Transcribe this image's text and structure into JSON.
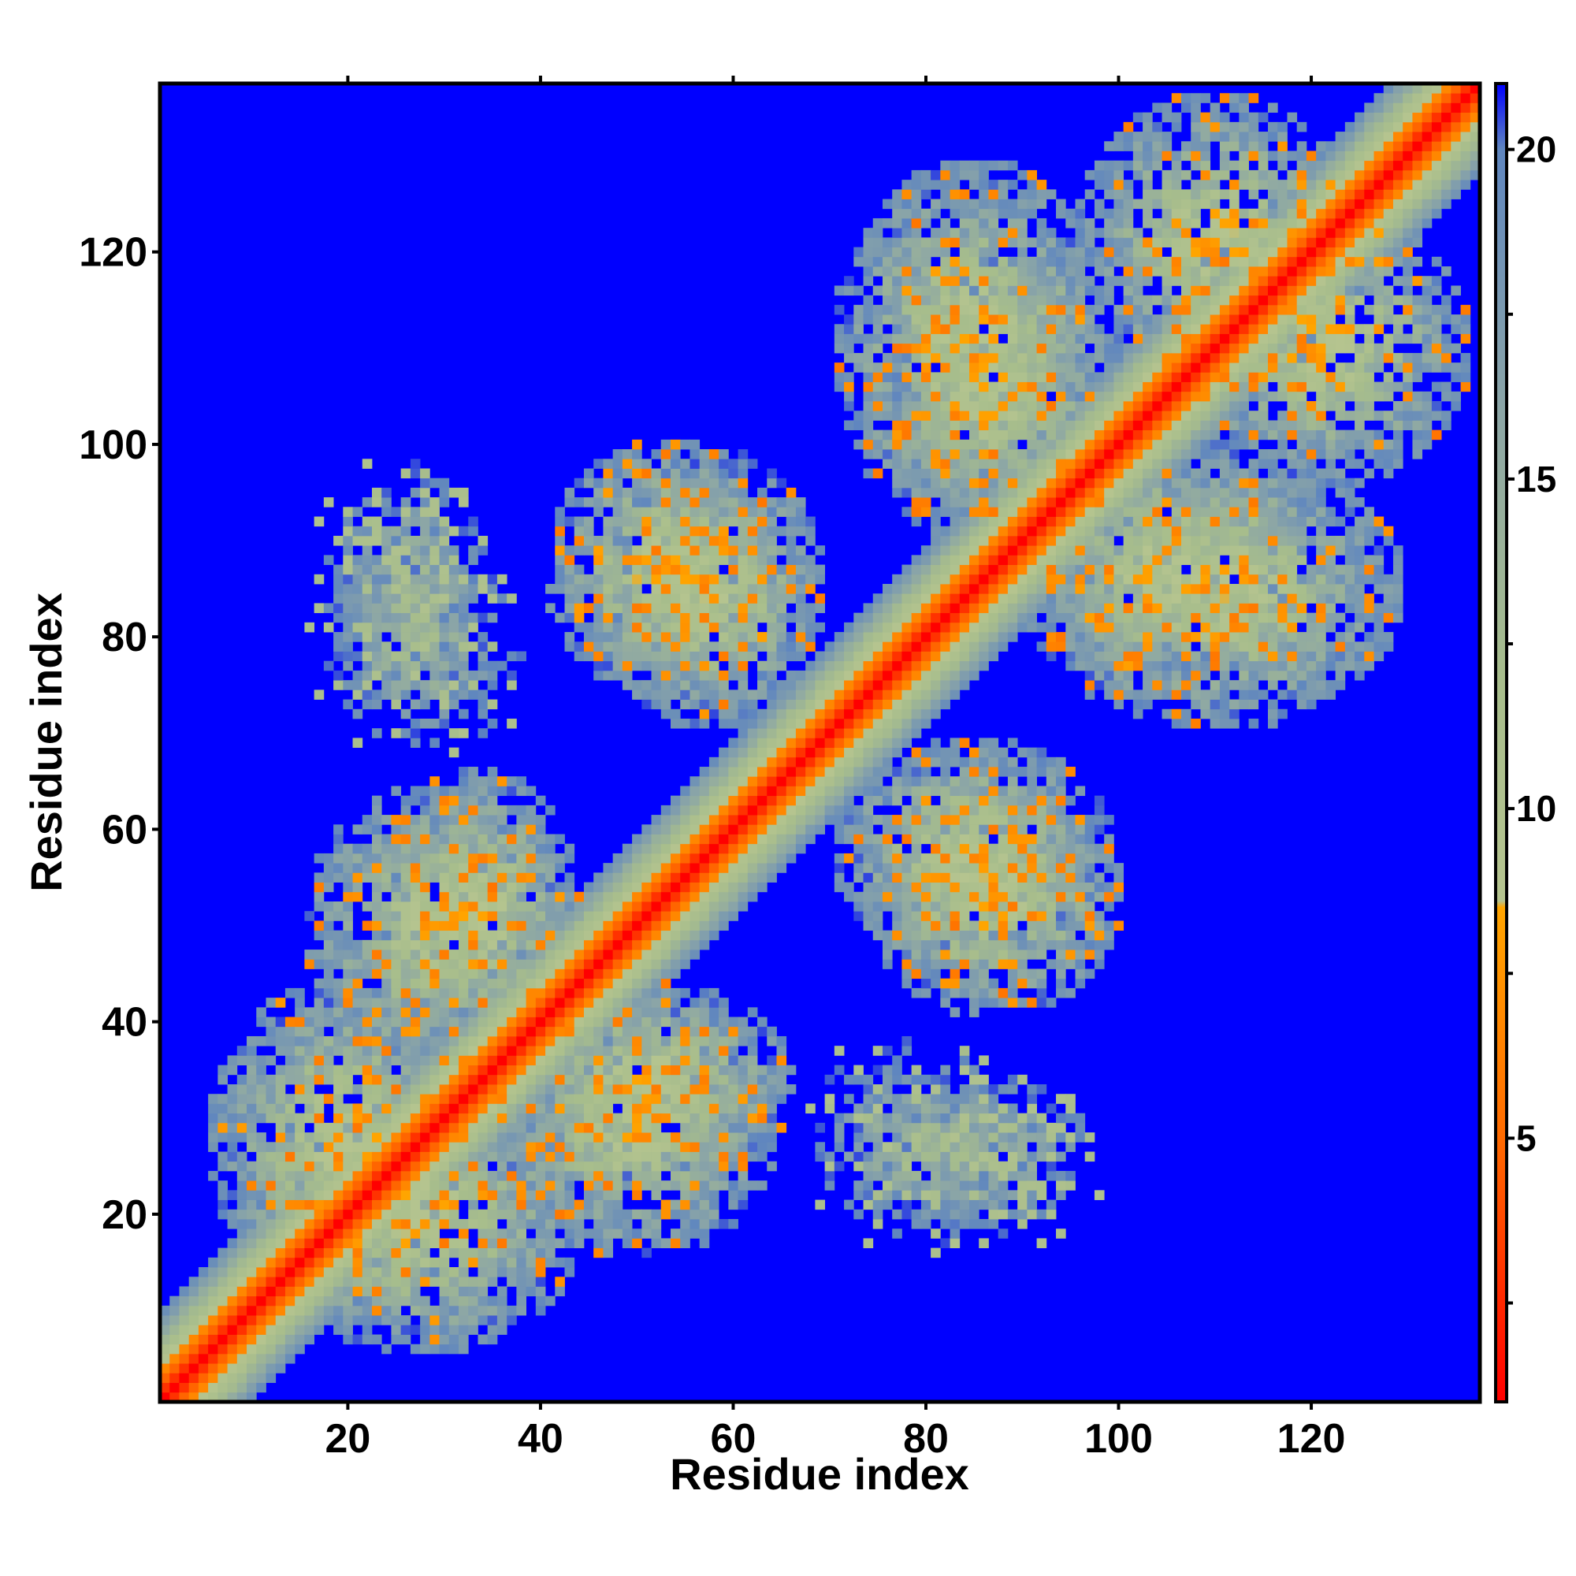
{
  "chart_data": {
    "type": "heatmap",
    "title": "",
    "xlabel": "Residue index",
    "ylabel": "Residue index",
    "xlim": [
      1,
      137
    ],
    "ylim": [
      1,
      137
    ],
    "x_ticks": [
      "20",
      "40",
      "60",
      "80",
      "100",
      "120"
    ],
    "y_ticks": [
      "20",
      "40",
      "60",
      "80",
      "100",
      "120"
    ],
    "matrix_size": 137,
    "value_unit": "distance",
    "colorbar": {
      "range": [
        1,
        21
      ],
      "ticks": [
        "5",
        "10",
        "15",
        "20"
      ],
      "stops": [
        {
          "value": 1,
          "color": "#ff0000"
        },
        {
          "value": 5,
          "color": "#ff6a00"
        },
        {
          "value": 8.5,
          "color": "#ffa500"
        },
        {
          "value": 8.6,
          "color": "#b5c48f"
        },
        {
          "value": 12,
          "color": "#a7bd8c"
        },
        {
          "value": 16,
          "color": "#8ca6a6"
        },
        {
          "value": 20,
          "color": "#5f86bf"
        },
        {
          "value": 21,
          "color": "#0000ff"
        }
      ]
    },
    "background_color": "#0000ff",
    "contact_regions": [
      {
        "label": "diagonal band",
        "x_range": [
          1,
          137
        ],
        "y_range": [
          1,
          137
        ],
        "min_value": 1
      },
      {
        "label": "off-diagonal block",
        "x_range": [
          45,
          60
        ],
        "y_range": [
          78,
          96
        ],
        "min_value": 6
      },
      {
        "label": "off-diagonal block",
        "x_range": [
          27,
          40
        ],
        "y_range": [
          40,
          62
        ],
        "min_value": 6
      },
      {
        "label": "off-diagonal block",
        "x_range": [
          20,
          32
        ],
        "y_range": [
          75,
          95
        ],
        "min_value": 10
      },
      {
        "label": "off-diagonal block",
        "x_range": [
          80,
          95
        ],
        "y_range": [
          95,
          115
        ],
        "min_value": 6
      },
      {
        "label": "off-diagonal block",
        "x_range": [
          95,
          125
        ],
        "y_range": [
          75,
          95
        ],
        "min_value": 6
      },
      {
        "label": "off-diagonal block",
        "x_range": [
          75,
          95
        ],
        "y_range": [
          50,
          65
        ],
        "min_value": 6
      },
      {
        "label": "off-diagonal block",
        "x_range": [
          40,
          60
        ],
        "y_range": [
          20,
          38
        ],
        "min_value": 6
      },
      {
        "label": "off-diagonal block",
        "x_range": [
          70,
          90
        ],
        "y_range": [
          20,
          35
        ],
        "min_value": 10
      },
      {
        "label": "off-diagonal block",
        "x_range": [
          100,
          120
        ],
        "y_range": [
          110,
          132
        ],
        "min_value": 6
      },
      {
        "label": "off-diagonal block",
        "x_range": [
          10,
          30
        ],
        "y_range": [
          15,
          40
        ],
        "min_value": 6
      }
    ]
  }
}
